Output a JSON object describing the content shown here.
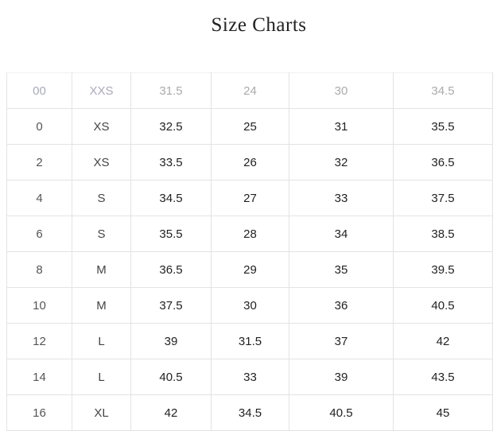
{
  "title": "Size Charts",
  "rows": [
    [
      "00",
      "XXS",
      "31.5",
      "24",
      "30",
      "34.5"
    ],
    [
      "0",
      "XS",
      "32.5",
      "25",
      "31",
      "35.5"
    ],
    [
      "2",
      "XS",
      "33.5",
      "26",
      "32",
      "36.5"
    ],
    [
      "4",
      "S",
      "34.5",
      "27",
      "33",
      "37.5"
    ],
    [
      "6",
      "S",
      "35.5",
      "28",
      "34",
      "38.5"
    ],
    [
      "8",
      "M",
      "36.5",
      "29",
      "35",
      "39.5"
    ],
    [
      "10",
      "M",
      "37.5",
      "30",
      "36",
      "40.5"
    ],
    [
      "12",
      "L",
      "39",
      "31.5",
      "37",
      "42"
    ],
    [
      "14",
      "L",
      "40.5",
      "33",
      "39",
      "43.5"
    ],
    [
      "16",
      "XL",
      "42",
      "34.5",
      "40.5",
      "45"
    ]
  ]
}
